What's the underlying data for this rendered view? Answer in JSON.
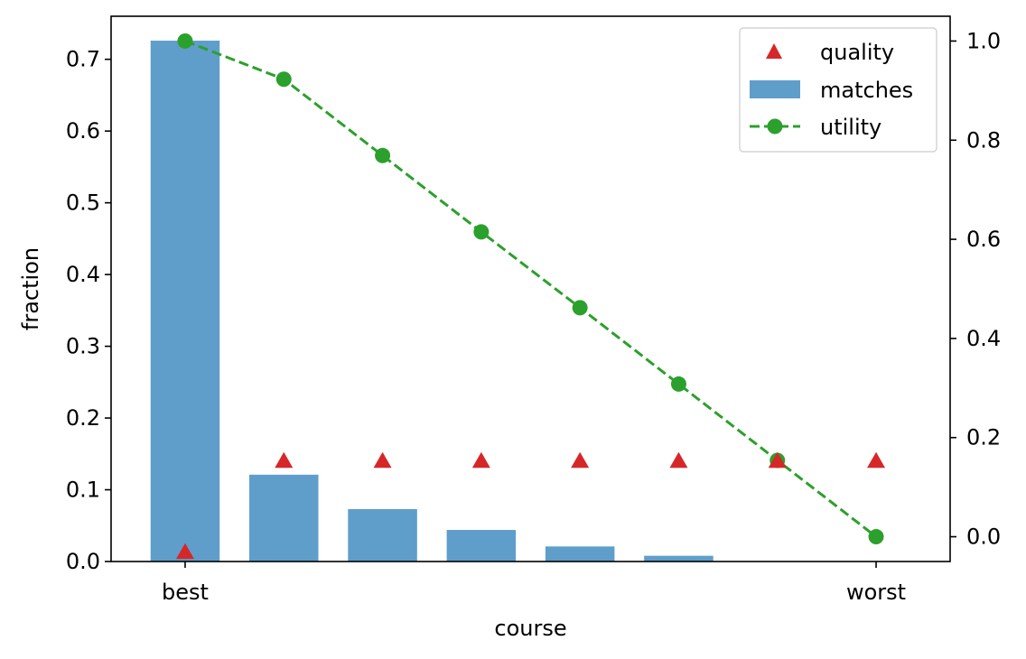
{
  "chart_data": {
    "type": "bar",
    "xlabel": "course",
    "ylabel": "fraction",
    "ylim": [
      0,
      0.76
    ],
    "y2lim": [
      -0.05,
      1.05
    ],
    "xlim": [
      -0.75,
      7.75
    ],
    "x_positions": [
      0,
      1,
      2,
      3,
      4,
      5,
      6,
      7
    ],
    "x_tick_labels": [
      {
        "x": 0,
        "label": "best"
      },
      {
        "x": 7,
        "label": "worst"
      }
    ],
    "y_ticks": [
      0.0,
      0.1,
      0.2,
      0.3,
      0.4,
      0.5,
      0.6,
      0.7
    ],
    "y_tick_labels": [
      "0.0",
      "0.1",
      "0.2",
      "0.3",
      "0.4",
      "0.5",
      "0.6",
      "0.7"
    ],
    "y2_ticks": [
      0.0,
      0.2,
      0.4,
      0.6,
      0.8,
      1.0
    ],
    "y2_tick_labels": [
      "0.0",
      "0.2",
      "0.4",
      "0.6",
      "0.8",
      "1.0"
    ],
    "grid": false,
    "legend_position": "top-right",
    "series": [
      {
        "name": "quality",
        "kind": "marker",
        "marker": "triangle",
        "axis": "left",
        "color": "#d62728",
        "values": [
          0.013,
          0.14,
          0.14,
          0.14,
          0.14,
          0.14,
          0.14,
          0.14
        ]
      },
      {
        "name": "matches",
        "kind": "bar",
        "axis": "left",
        "color": "#5f9ecb",
        "values": [
          0.726,
          0.121,
          0.073,
          0.044,
          0.021,
          0.008,
          0.0,
          0.0
        ]
      },
      {
        "name": "utility",
        "kind": "line",
        "marker": "circle",
        "line_style": "dashed",
        "axis": "right",
        "color": "#2ca02c",
        "values": [
          1.0,
          0.923,
          0.769,
          0.615,
          0.462,
          0.308,
          0.154,
          0.0
        ]
      }
    ]
  }
}
